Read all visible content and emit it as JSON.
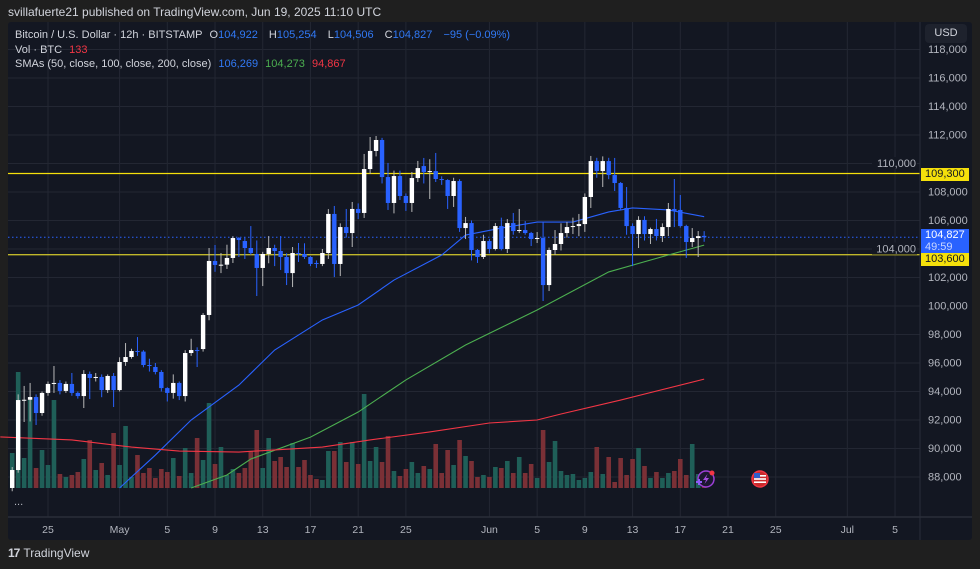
{
  "publisher_line": "svillafuerte21 published on TradingView.com, Jun 19, 2025 11:10 UTC",
  "legend": {
    "symbol": "Bitcoin / U.S. Dollar · 12h · BITSTAMP",
    "o_label": "O",
    "o": "104,922",
    "h_label": "H",
    "h": "105,254",
    "l_label": "L",
    "l": "104,506",
    "c_label": "C",
    "c": "104,827",
    "change": "−95 (−0.09%)",
    "vol_label": "Vol · BTC",
    "vol": "133",
    "sma_label": "SMAs (50, close, 100, close, 200, close)",
    "sma50": "106,269",
    "sma100": "104,273",
    "sma200": "94,867"
  },
  "currency_button": "USD",
  "more_button": "...",
  "footer_brand": "TradingView",
  "footer_logo": "17",
  "colors": {
    "background": "#131722",
    "grid": "#232733",
    "up": "#ffffff",
    "down": "#2962ff",
    "vol_up": "#1f5f58",
    "vol_down": "#7a3036",
    "sma50": "#2962ff",
    "sma100": "#4caf50",
    "sma200": "#f23645",
    "hline": "#f5e00b",
    "price_line": "#2962ff"
  },
  "icons": {
    "event_marker_1": "lightning-icon",
    "event_marker_2": "us-flag-icon"
  },
  "price_labels": {
    "resistance": "109,300",
    "current": "104,827",
    "countdown": "49:59",
    "support": "103,600"
  },
  "chart_data": {
    "type": "candlestick",
    "symbol": "BTCUSD",
    "interval": "12h",
    "x_start": "2025-04-22 00:00",
    "y_ticks": [
      88000,
      90000,
      92000,
      94000,
      96000,
      98000,
      100000,
      102000,
      104000,
      106000,
      108000,
      110000,
      112000,
      114000,
      116000,
      118000
    ],
    "y_tick_labels": [
      "88,000",
      "90,000",
      "92,000",
      "94,000",
      "96,000",
      "98,000",
      "100,000",
      "102,000",
      "104,000",
      "106,000",
      "108,000",
      "110,000",
      "112,000",
      "114,000",
      "116,000",
      "118,000"
    ],
    "x_ticks": [
      {
        "date": "2025-04-25",
        "label": "25"
      },
      {
        "date": "2025-05-01",
        "label": "May"
      },
      {
        "date": "2025-05-05",
        "label": "5"
      },
      {
        "date": "2025-05-09",
        "label": "9"
      },
      {
        "date": "2025-05-13",
        "label": "13"
      },
      {
        "date": "2025-05-17",
        "label": "17"
      },
      {
        "date": "2025-05-21",
        "label": "21"
      },
      {
        "date": "2025-05-25",
        "label": "25"
      },
      {
        "date": "2025-06-01",
        "label": "Jun"
      },
      {
        "date": "2025-06-05",
        "label": "5"
      },
      {
        "date": "2025-06-09",
        "label": "9"
      },
      {
        "date": "2025-06-13",
        "label": "13"
      },
      {
        "date": "2025-06-17",
        "label": "17"
      },
      {
        "date": "2025-06-21",
        "label": "21"
      },
      {
        "date": "2025-06-25",
        "label": "25"
      },
      {
        "date": "2025-07-01",
        "label": "Jul"
      },
      {
        "date": "2025-07-05",
        "label": "5"
      }
    ],
    "horizontal_lines": [
      109300,
      103600
    ],
    "last_price": 104827,
    "ohlc": [
      [
        87230,
        88700,
        87000,
        88490
      ],
      [
        88490,
        93800,
        88300,
        93400
      ],
      [
        93400,
        94390,
        91860,
        93420
      ],
      [
        93420,
        94600,
        91900,
        93610
      ],
      [
        93610,
        93800,
        91650,
        92490
      ],
      [
        92490,
        94000,
        92300,
        93900
      ],
      [
        93900,
        94700,
        93700,
        94530
      ],
      [
        94530,
        95790,
        93900,
        94600
      ],
      [
        94600,
        94800,
        93800,
        94040
      ],
      [
        94040,
        94700,
        93900,
        94530
      ],
      [
        94530,
        95300,
        93700,
        93900
      ],
      [
        93900,
        94000,
        93500,
        93680
      ],
      [
        93680,
        95500,
        92840,
        95230
      ],
      [
        95230,
        95400,
        93470,
        94950
      ],
      [
        94950,
        95300,
        94700,
        95020
      ],
      [
        95020,
        95200,
        93600,
        94100
      ],
      [
        94100,
        95200,
        93900,
        95090
      ],
      [
        95090,
        95300,
        92910,
        94100
      ],
      [
        94100,
        96400,
        94000,
        96070
      ],
      [
        96070,
        97400,
        95800,
        96420
      ],
      [
        96420,
        97000,
        96300,
        96840
      ],
      [
        96840,
        97820,
        96500,
        96800
      ],
      [
        96800,
        96900,
        95700,
        95860
      ],
      [
        95860,
        96300,
        95400,
        95790
      ],
      [
        95720,
        96000,
        95200,
        95370
      ],
      [
        95370,
        95500,
        94000,
        94240
      ],
      [
        94240,
        94300,
        93300,
        93900
      ],
      [
        93900,
        95200,
        93500,
        94600
      ],
      [
        94600,
        94700,
        93400,
        93680
      ],
      [
        93680,
        96900,
        93300,
        96700
      ],
      [
        96700,
        97700,
        96500,
        96910
      ],
      [
        96910,
        97100,
        95720,
        96850
      ],
      [
        96980,
        99500,
        96800,
        99370
      ],
      [
        99370,
        104070,
        99000,
        103160
      ],
      [
        103160,
        104280,
        102400,
        102880
      ],
      [
        102880,
        103720,
        102310,
        102900
      ],
      [
        102900,
        104300,
        102600,
        103370
      ],
      [
        103370,
        104900,
        103020,
        104770
      ],
      [
        104770,
        104840,
        103440,
        104630
      ],
      [
        104560,
        104800,
        103300,
        104070
      ],
      [
        104070,
        105610,
        103600,
        103720
      ],
      [
        103650,
        104600,
        100700,
        102670
      ],
      [
        102670,
        103800,
        101400,
        103650
      ],
      [
        103650,
        104910,
        103000,
        104070
      ],
      [
        104070,
        104300,
        102800,
        103860
      ],
      [
        103860,
        104910,
        102530,
        103440
      ],
      [
        103440,
        103700,
        101470,
        102310
      ],
      [
        102310,
        104140,
        101330,
        103720
      ],
      [
        103720,
        104420,
        103090,
        103650
      ],
      [
        103650,
        104400,
        103300,
        103440
      ],
      [
        103440,
        103500,
        102800,
        102950
      ],
      [
        103020,
        103200,
        102670,
        102950
      ],
      [
        102950,
        104000,
        102800,
        103720
      ],
      [
        103720,
        106800,
        103300,
        106460
      ],
      [
        106460,
        107020,
        102030,
        102950
      ],
      [
        102950,
        105800,
        102100,
        105540
      ],
      [
        105540,
        106810,
        104800,
        105120
      ],
      [
        105120,
        107300,
        104140,
        106810
      ],
      [
        106810,
        107200,
        106100,
        106530
      ],
      [
        106530,
        110670,
        106180,
        109610
      ],
      [
        109610,
        111860,
        109260,
        110880
      ],
      [
        110880,
        111930,
        110500,
        111650
      ],
      [
        111650,
        111800,
        108600,
        109050
      ],
      [
        109050,
        110040,
        106740,
        107230
      ],
      [
        107230,
        109500,
        106500,
        109120
      ],
      [
        109120,
        109500,
        107440,
        107720
      ],
      [
        107720,
        107900,
        106670,
        107230
      ],
      [
        107230,
        109400,
        106600,
        108980
      ],
      [
        108980,
        110180,
        108700,
        109680
      ],
      [
        109820,
        110390,
        108600,
        109400
      ],
      [
        109400,
        110300,
        107510,
        109470
      ],
      [
        109470,
        110740,
        108700,
        108910
      ],
      [
        108910,
        109100,
        108500,
        108840
      ],
      [
        108840,
        108900,
        106810,
        107720
      ],
      [
        107720,
        109000,
        106950,
        108770
      ],
      [
        108770,
        108900,
        105200,
        105470
      ],
      [
        105470,
        106250,
        104700,
        105820
      ],
      [
        105820,
        106000,
        103200,
        103930
      ],
      [
        103930,
        104000,
        103020,
        103440
      ],
      [
        103440,
        105000,
        103300,
        104560
      ],
      [
        104560,
        104700,
        103700,
        104000
      ],
      [
        104000,
        105820,
        103900,
        105610
      ],
      [
        105610,
        106200,
        103900,
        104000
      ],
      [
        104000,
        106100,
        103720,
        105820
      ],
      [
        105820,
        106530,
        105000,
        105260
      ],
      [
        105260,
        106810,
        105120,
        105330
      ],
      [
        105330,
        105960,
        105000,
        105120
      ],
      [
        105120,
        105200,
        104210,
        104700
      ],
      [
        104700,
        105190,
        104420,
        104770
      ],
      [
        104770,
        105890,
        100350,
        101470
      ],
      [
        101470,
        104100,
        101050,
        103930
      ],
      [
        103930,
        105330,
        103580,
        104350
      ],
      [
        104350,
        105800,
        103900,
        105120
      ],
      [
        105120,
        105900,
        104800,
        105540
      ],
      [
        105540,
        106200,
        105050,
        105610
      ],
      [
        105610,
        106460,
        104900,
        105750
      ],
      [
        105750,
        107900,
        105200,
        107650
      ],
      [
        107650,
        110530,
        106880,
        110170
      ],
      [
        110170,
        110400,
        109000,
        109470
      ],
      [
        109470,
        110500,
        108350,
        110170
      ],
      [
        110170,
        110400,
        108900,
        109190
      ],
      [
        109190,
        110390,
        108070,
        108630
      ],
      [
        108630,
        108700,
        106700,
        106880
      ],
      [
        106880,
        108350,
        105000,
        105610
      ],
      [
        105610,
        105800,
        102800,
        105050
      ],
      [
        105050,
        106300,
        104070,
        106040
      ],
      [
        106040,
        106300,
        104600,
        105050
      ],
      [
        105050,
        105500,
        104350,
        105400
      ],
      [
        105400,
        106110,
        104600,
        104910
      ],
      [
        104910,
        105800,
        104490,
        105540
      ],
      [
        105540,
        107230,
        104910,
        106810
      ],
      [
        106810,
        108910,
        105540,
        106670
      ],
      [
        106740,
        107790,
        105500,
        105610
      ],
      [
        105610,
        105700,
        103370,
        104490
      ],
      [
        104490,
        105470,
        104140,
        104770
      ],
      [
        104770,
        105260,
        103440,
        104900
      ],
      [
        104922,
        105254,
        104506,
        104827
      ]
    ],
    "volume": [
      420,
      1392,
      360,
      1056,
      240,
      456,
      276,
      1056,
      168,
      132,
      156,
      192,
      348,
      576,
      216,
      300,
      156,
      660,
      276,
      744,
      132,
      396,
      180,
      240,
      120,
      228,
      192,
      360,
      144,
      480,
      180,
      600,
      336,
      1020,
      288,
      492,
      156,
      228,
      180,
      240,
      444,
      696,
      240,
      600,
      324,
      372,
      252,
      540,
      252,
      336,
      156,
      108,
      96,
      444,
      444,
      552,
      312,
      552,
      288,
      1128,
      324,
      492,
      312,
      624,
      204,
      144,
      228,
      312,
      180,
      264,
      228,
      528,
      180,
      456,
      276,
      576,
      384,
      324,
      132,
      156,
      132,
      252,
      240,
      324,
      180,
      372,
      180,
      288,
      120,
      696,
      312,
      564,
      204,
      156,
      168,
      96,
      120,
      192,
      492,
      168,
      372,
      72,
      360,
      156,
      348,
      480,
      264,
      120,
      192,
      120,
      180,
      204,
      348,
      156,
      528,
      168,
      133
    ],
    "sma50": [
      [
        "2025-05-01",
        87230
      ],
      [
        "2025-05-04",
        89540
      ],
      [
        "2025-05-07",
        92000
      ],
      [
        "2025-05-11",
        94450
      ],
      [
        "2025-05-14",
        96910
      ],
      [
        "2025-05-18",
        99020
      ],
      [
        "2025-05-21",
        100070
      ],
      [
        "2025-05-24",
        101820
      ],
      [
        "2025-05-28",
        103580
      ],
      [
        "2025-05-30",
        104980
      ],
      [
        "2025-06-02",
        105470
      ],
      [
        "2025-06-05",
        105890
      ],
      [
        "2025-06-08",
        105890
      ],
      [
        "2025-06-11",
        106600
      ],
      [
        "2025-06-13",
        106880
      ],
      [
        "2025-06-16",
        106740
      ],
      [
        "2025-06-19",
        106269
      ]
    ],
    "sma100": [
      [
        "2025-05-07",
        87230
      ],
      [
        "2025-05-10",
        88140
      ],
      [
        "2025-05-12",
        89260
      ],
      [
        "2025-05-17",
        90800
      ],
      [
        "2025-05-21",
        92560
      ],
      [
        "2025-05-25",
        94810
      ],
      [
        "2025-05-30",
        97260
      ],
      [
        "2025-06-05",
        99720
      ],
      [
        "2025-06-11",
        102390
      ],
      [
        "2025-06-16",
        103580
      ],
      [
        "2025-06-19",
        104273
      ]
    ],
    "sma200": [
      [
        "2025-04-21",
        90810
      ],
      [
        "2025-04-27",
        90600
      ],
      [
        "2025-05-02",
        90100
      ],
      [
        "2025-05-06",
        89820
      ],
      [
        "2025-05-11",
        89750
      ],
      [
        "2025-05-18",
        90100
      ],
      [
        "2025-05-22",
        90600
      ],
      [
        "2025-05-27",
        91160
      ],
      [
        "2025-06-01",
        91790
      ],
      [
        "2025-06-05",
        92000
      ],
      [
        "2025-06-07",
        92420
      ],
      [
        "2025-06-12",
        93400
      ],
      [
        "2025-06-19",
        94867
      ]
    ]
  }
}
